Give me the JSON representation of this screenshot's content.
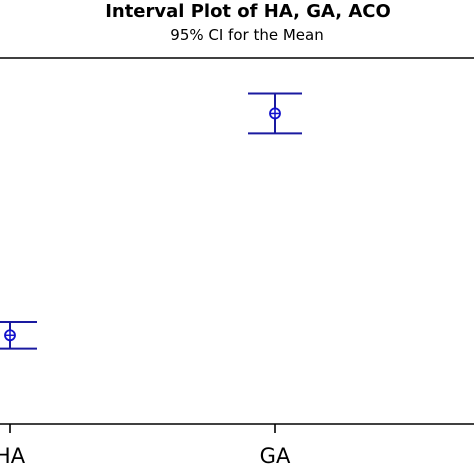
{
  "chart_data": {
    "type": "interval",
    "title": "Interval Plot of HA, GA, ACO",
    "subtitle": "95% CI for the Mean",
    "categories": [
      "HA",
      "GA"
    ],
    "series": [
      {
        "values": [
          {
            "category": "HA",
            "mean": 0.5,
            "lower": 0.26,
            "upper": 0.74
          },
          {
            "category": "GA",
            "mean": 4.5,
            "lower": 4.14,
            "upper": 4.86
          }
        ]
      }
    ],
    "ylim": [
      -1.1,
      5.5
    ],
    "grid": false,
    "marker": "circle-plus",
    "color": "#1a1aa0",
    "marker_color": "#1111cc"
  }
}
